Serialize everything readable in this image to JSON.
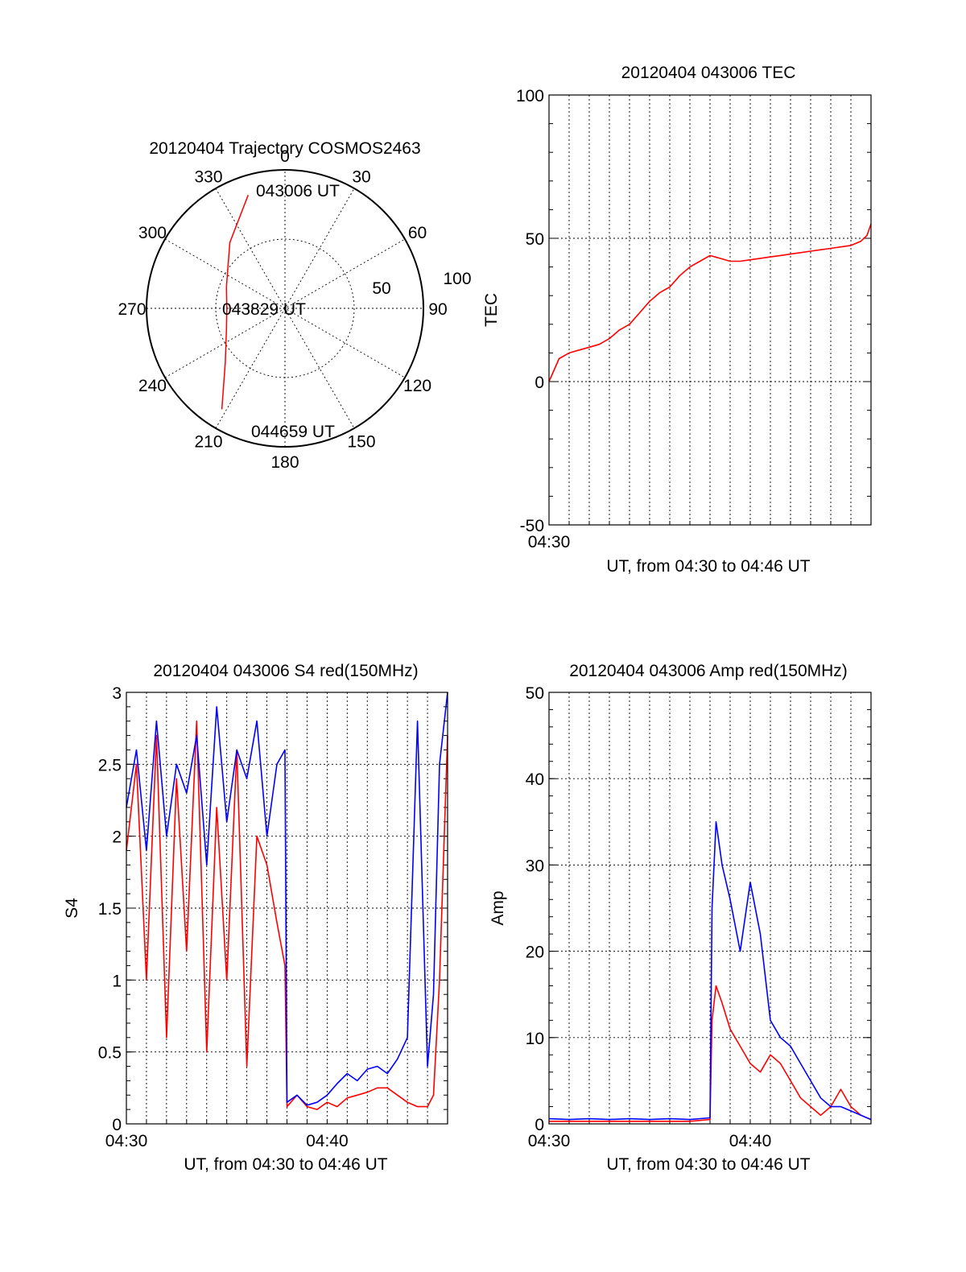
{
  "colors": {
    "red_series": "#ff0000",
    "blue_series": "#0000ff",
    "axis": "#000000"
  },
  "chart_data": [
    {
      "id": "trajectory",
      "type": "polar",
      "title": "20120404 Trajectory COSMOS2463",
      "azimuth_labels": [
        "0",
        "30",
        "60",
        "90",
        "120",
        "150",
        "180",
        "210",
        "240",
        "270",
        "300",
        "330"
      ],
      "radial_labels": [
        "50",
        "100"
      ],
      "rlim": [
        0,
        100
      ],
      "annotations": {
        "start": "043006 UT",
        "mid": "043829 UT",
        "end": "044659 UT"
      },
      "series": [
        {
          "color": "#ff0000",
          "points": [
            [
              342,
              86
            ],
            [
              320,
              62
            ],
            [
              290,
              45
            ],
            [
              270,
              42
            ],
            [
              250,
              45
            ],
            [
              228,
              58
            ],
            [
              212,
              86
            ]
          ]
        }
      ]
    },
    {
      "id": "tec",
      "type": "line",
      "title": "20120404 043006 TEC",
      "xlabel": "UT, from 04:30 to 04:46 UT",
      "ylabel": "TEC",
      "ylim": [
        -50,
        100
      ],
      "xlim": [
        0,
        16
      ],
      "yticks": [
        "-50",
        "0",
        "50",
        "100"
      ],
      "xticks": [
        {
          "x": 0,
          "label": "04:30"
        }
      ],
      "series": [
        {
          "color": "#ff0000",
          "x": [
            0,
            0.5,
            1,
            1.5,
            2,
            2.5,
            3,
            3.5,
            4,
            4.5,
            5,
            5.5,
            6,
            6.5,
            7,
            7.5,
            8,
            8.5,
            9,
            9.5,
            10,
            10.5,
            11,
            11.5,
            12,
            12.5,
            13,
            13.5,
            14,
            14.5,
            15,
            15.5,
            15.8,
            16
          ],
          "y": [
            0,
            8,
            10,
            11,
            12,
            13,
            15,
            18,
            20,
            24,
            28,
            31,
            33,
            37,
            40,
            42,
            44,
            43,
            42,
            42,
            42.5,
            43,
            43.5,
            44,
            44.5,
            45,
            45.5,
            46,
            46.5,
            47,
            47.5,
            49,
            51,
            55
          ]
        }
      ]
    },
    {
      "id": "s4",
      "type": "line",
      "title": "20120404 043006 S4 red(150MHz)",
      "xlabel": "UT, from 04:30 to 04:46 UT",
      "ylabel": "S4",
      "ylim": [
        0,
        3
      ],
      "xlim": [
        0,
        16
      ],
      "yticks": [
        "0",
        "0.5",
        "1",
        "1.5",
        "2",
        "2.5",
        "3"
      ],
      "xticks": [
        {
          "x": 0,
          "label": "04:30"
        },
        {
          "x": 10,
          "label": "04:40"
        }
      ],
      "series": [
        {
          "name": "",
          "color": "#ff0000",
          "x": [
            0,
            0.5,
            1,
            1.5,
            2,
            2.5,
            3,
            3.5,
            4,
            4.5,
            5,
            5.5,
            6,
            6.5,
            7,
            7.5,
            7.9,
            8,
            8.5,
            9,
            9.5,
            10,
            10.5,
            11,
            11.5,
            12,
            12.5,
            13,
            13.5,
            14,
            14.5,
            15,
            15.3,
            15.6,
            16
          ],
          "y": [
            1.9,
            2.5,
            1.0,
            2.7,
            0.6,
            2.4,
            1.2,
            2.8,
            0.5,
            2.2,
            1.0,
            2.6,
            0.4,
            2.0,
            1.8,
            1.4,
            1.1,
            0.12,
            0.2,
            0.12,
            0.1,
            0.15,
            0.12,
            0.18,
            0.2,
            0.22,
            0.25,
            0.25,
            0.2,
            0.15,
            0.12,
            0.12,
            0.2,
            1.0,
            2.7
          ]
        },
        {
          "name": "",
          "color": "#0000ff",
          "x": [
            0,
            0.5,
            1,
            1.5,
            2,
            2.5,
            3,
            3.5,
            4,
            4.5,
            5,
            5.5,
            6,
            6.5,
            7,
            7.5,
            7.9,
            8,
            8.5,
            9,
            9.5,
            10,
            10.5,
            11,
            11.5,
            12,
            12.5,
            13,
            13.5,
            14,
            14.5,
            15,
            15.3,
            15.6,
            16
          ],
          "y": [
            2.2,
            2.6,
            1.9,
            2.8,
            2.0,
            2.5,
            2.3,
            2.7,
            1.8,
            2.9,
            2.1,
            2.6,
            2.4,
            2.8,
            2.0,
            2.5,
            2.6,
            0.15,
            0.2,
            0.13,
            0.15,
            0.2,
            0.28,
            0.35,
            0.3,
            0.38,
            0.4,
            0.35,
            0.45,
            0.6,
            2.8,
            0.4,
            0.9,
            2.5,
            3.0
          ]
        }
      ]
    },
    {
      "id": "amp",
      "type": "line",
      "title": "20120404 043006 Amp red(150MHz)",
      "xlabel": "UT, from 04:30 to 04:46 UT",
      "ylabel": "Amp",
      "ylim": [
        0,
        50
      ],
      "xlim": [
        0,
        16
      ],
      "yticks": [
        "0",
        "10",
        "20",
        "30",
        "40",
        "50"
      ],
      "xticks": [
        {
          "x": 0,
          "label": "04:30"
        },
        {
          "x": 10,
          "label": "04:40"
        }
      ],
      "series": [
        {
          "name": "",
          "color": "#ff0000",
          "x": [
            0,
            1,
            2,
            3,
            4,
            5,
            6,
            7,
            8,
            8.1,
            8.3,
            8.6,
            9,
            9.5,
            10,
            10.5,
            11,
            11.5,
            12,
            12.5,
            13,
            13.5,
            14,
            14.5,
            15,
            15.5,
            16
          ],
          "y": [
            0.3,
            0.3,
            0.3,
            0.3,
            0.3,
            0.3,
            0.3,
            0.3,
            0.5,
            12,
            16,
            14,
            11,
            9,
            7,
            6,
            8,
            7,
            5,
            3,
            2,
            1,
            2,
            4,
            2,
            1,
            0.5
          ]
        },
        {
          "name": "",
          "color": "#0000ff",
          "x": [
            0,
            1,
            2,
            3,
            4,
            5,
            6,
            7,
            8,
            8.1,
            8.3,
            8.6,
            9,
            9.5,
            10,
            10.5,
            11,
            11.5,
            12,
            12.5,
            13,
            13.5,
            14,
            14.5,
            15,
            15.5,
            16
          ],
          "y": [
            0.6,
            0.5,
            0.6,
            0.5,
            0.6,
            0.5,
            0.6,
            0.5,
            0.7,
            25,
            35,
            30,
            26,
            20,
            28,
            22,
            12,
            10,
            9,
            7,
            5,
            3,
            2,
            2,
            1.5,
            1,
            0.5
          ]
        }
      ]
    }
  ]
}
